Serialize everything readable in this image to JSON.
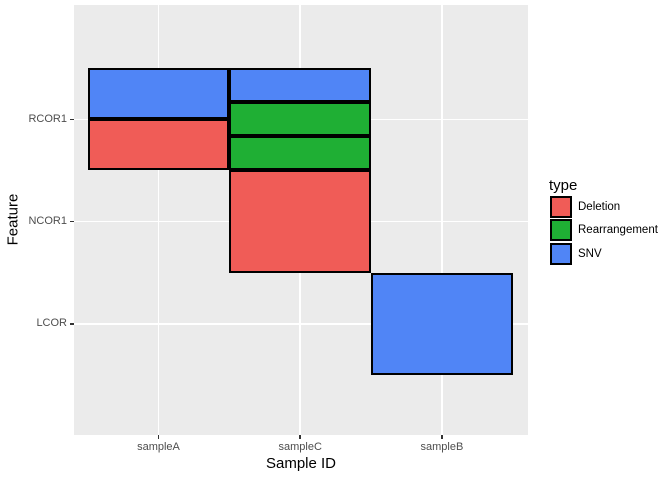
{
  "chart_data": {
    "type": "heatmap",
    "title": "",
    "xlabel": "Sample ID",
    "ylabel": "Feature",
    "x_categories": [
      "sampleA",
      "sampleC",
      "sampleB"
    ],
    "y_categories_top_to_bottom": [
      "RCOR1",
      "NCOR1",
      "LCOR"
    ],
    "grid": "major white gridlines at each category on gray panel, no minor gridlines",
    "legend": {
      "title": "type",
      "position": "right",
      "entries": [
        {
          "label": "Deletion",
          "color": "#F05C57"
        },
        {
          "label": "Rearrangement",
          "color": "#1FAF34"
        },
        {
          "label": "SNV",
          "color": "#5085F6"
        }
      ]
    },
    "tiles": [
      {
        "sample": "sampleA",
        "feature": "RCOR1",
        "types": [
          "SNV",
          "Deletion"
        ]
      },
      {
        "sample": "sampleC",
        "feature": "RCOR1",
        "types": [
          "SNV",
          "Rearrangement",
          "Rearrangement"
        ]
      },
      {
        "sample": "sampleC",
        "feature": "NCOR1",
        "types": [
          "Deletion"
        ]
      },
      {
        "sample": "sampleB",
        "feature": "LCOR",
        "types": [
          "SNV"
        ]
      }
    ]
  },
  "colors": {
    "figure_background": "#FFFFFF",
    "panel_background": "#EBEBEB",
    "gridline": "#FFFFFF",
    "tile_border": "#000000",
    "tick_mark": "#333333",
    "tick_label": "#4D4D4D",
    "axis_title": "#000000"
  }
}
